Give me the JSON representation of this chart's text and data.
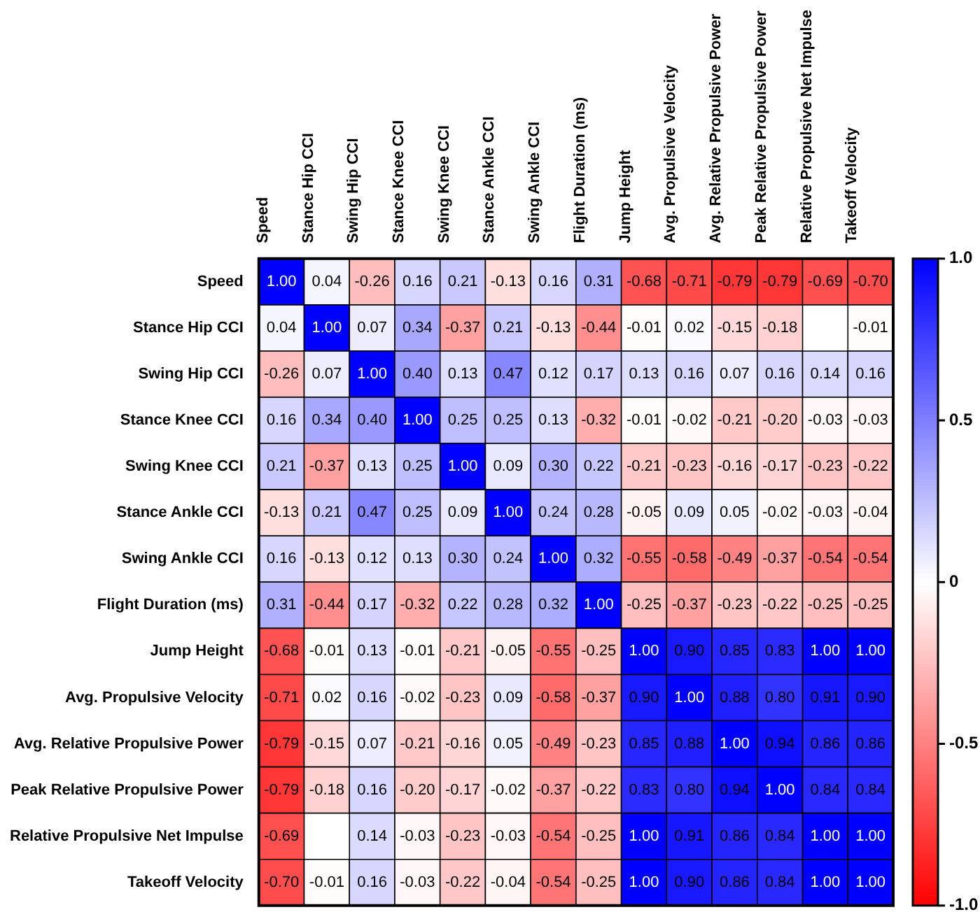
{
  "chart_data": {
    "type": "heatmap",
    "categories": [
      "Speed",
      "Stance Hip CCI",
      "Swing Hip CCI",
      "Stance Knee CCI",
      "Swing Knee CCI",
      "Stance Ankle CCI",
      "Swing Ankle CCI",
      "Flight Duration (ms)",
      "Jump Height",
      "Avg. Propulsive Velocity",
      "Avg. Relative Propulsive Power",
      "Peak Relative Propulsive Power",
      "Relative Propulsive Net Impulse",
      "Takeoff Velocity"
    ],
    "y_categories": [
      "Speed",
      "Stance Hip CCI",
      "Swing Hip CCI",
      "Stance Knee CCI",
      "Swing Knee CCI",
      "Stance Ankle CCI",
      "Swing Ankle CCI",
      "Flight Duration (ms)",
      "Jump Height",
      "Avg. Propulsive Velocity",
      "Avg. Relative Propulsive Power",
      "Peak Relative Propulsive Power",
      "Relative Propulsive Net Impulse",
      "Takeoff Velocity"
    ],
    "cells": [
      [
        1.0,
        0.04,
        -0.26,
        0.16,
        0.21,
        -0.13,
        0.16,
        0.31,
        -0.68,
        -0.71,
        -0.79,
        -0.79,
        -0.69,
        -0.7
      ],
      [
        0.04,
        1.0,
        0.07,
        0.34,
        -0.37,
        0.21,
        -0.13,
        -0.44,
        -0.01,
        0.02,
        -0.15,
        -0.18,
        null,
        -0.01
      ],
      [
        -0.26,
        0.07,
        1.0,
        0.4,
        0.13,
        0.47,
        0.12,
        0.17,
        0.13,
        0.16,
        0.07,
        0.16,
        0.14,
        0.16
      ],
      [
        0.16,
        0.34,
        0.4,
        1.0,
        0.25,
        0.25,
        0.13,
        -0.32,
        -0.01,
        -0.02,
        -0.21,
        -0.2,
        -0.03,
        -0.03
      ],
      [
        0.21,
        -0.37,
        0.13,
        0.25,
        1.0,
        0.09,
        0.3,
        0.22,
        -0.21,
        -0.23,
        -0.16,
        -0.17,
        -0.23,
        -0.22
      ],
      [
        -0.13,
        0.21,
        0.47,
        0.25,
        0.09,
        1.0,
        0.24,
        0.28,
        -0.05,
        0.09,
        0.05,
        -0.02,
        -0.03,
        -0.04
      ],
      [
        0.16,
        -0.13,
        0.12,
        0.13,
        0.3,
        0.24,
        1.0,
        0.32,
        -0.55,
        -0.58,
        -0.49,
        -0.37,
        -0.54,
        -0.54
      ],
      [
        0.31,
        -0.44,
        0.17,
        -0.32,
        0.22,
        0.28,
        0.32,
        1.0,
        -0.25,
        -0.37,
        -0.23,
        -0.22,
        -0.25,
        -0.25
      ],
      [
        -0.68,
        -0.01,
        0.13,
        -0.01,
        -0.21,
        -0.05,
        -0.55,
        -0.25,
        1.0,
        0.9,
        0.85,
        0.83,
        1.0,
        1.0
      ],
      [
        -0.71,
        0.02,
        0.16,
        -0.02,
        -0.23,
        0.09,
        -0.58,
        -0.37,
        0.9,
        1.0,
        0.88,
        0.8,
        0.91,
        0.9
      ],
      [
        -0.79,
        -0.15,
        0.07,
        -0.21,
        -0.16,
        0.05,
        -0.49,
        -0.23,
        0.85,
        0.88,
        1.0,
        0.94,
        0.86,
        0.86
      ],
      [
        -0.79,
        -0.18,
        0.16,
        -0.2,
        -0.17,
        -0.02,
        -0.37,
        -0.22,
        0.83,
        0.8,
        0.94,
        1.0,
        0.84,
        0.84
      ],
      [
        -0.69,
        null,
        0.14,
        -0.03,
        -0.23,
        -0.03,
        -0.54,
        -0.25,
        1.0,
        0.91,
        0.86,
        0.84,
        1.0,
        1.0
      ],
      [
        -0.7,
        -0.01,
        0.16,
        -0.03,
        -0.22,
        -0.04,
        -0.54,
        -0.25,
        1.0,
        0.9,
        0.86,
        0.84,
        1.0,
        1.0
      ]
    ],
    "cell_labels": [
      [
        "1.00",
        "0.04",
        "-0.26",
        "0.16",
        "0.21",
        "-0.13",
        "0.16",
        "0.31",
        "-0.68",
        "-0.71",
        "-0.79",
        "-0.79",
        "-0.69",
        "-0.70"
      ],
      [
        "0.04",
        "1.00",
        "0.07",
        "0.34",
        "-0.37",
        "0.21",
        "-0.13",
        "-0.44",
        "-0.01",
        "0.02",
        "-0.15",
        "-0.18",
        null,
        "-0.01"
      ],
      [
        "-0.26",
        "0.07",
        "1.00",
        "0.40",
        "0.13",
        "0.47",
        "0.12",
        "0.17",
        "0.13",
        "0.16",
        "0.07",
        "0.16",
        "0.14",
        "0.16"
      ],
      [
        "0.16",
        "0.34",
        "0.40",
        "1.00",
        "0.25",
        "0.25",
        "0.13",
        "-0.32",
        "-0.01",
        "-0.02",
        "-0.21",
        "-0.20",
        "-0.03",
        "-0.03"
      ],
      [
        "0.21",
        "-0.37",
        "0.13",
        "0.25",
        "1.00",
        "0.09",
        "0.30",
        "0.22",
        "-0.21",
        "-0.23",
        "-0.16",
        "-0.17",
        "-0.23",
        "-0.22"
      ],
      [
        "-0.13",
        "0.21",
        "0.47",
        "0.25",
        "0.09",
        "1.00",
        "0.24",
        "0.28",
        "-0.05",
        "0.09",
        "0.05",
        "-0.02",
        "-0.03",
        "-0.04"
      ],
      [
        "0.16",
        "-0.13",
        "0.12",
        "0.13",
        "0.30",
        "0.24",
        "1.00",
        "0.32",
        "-0.55",
        "-0.58",
        "-0.49",
        "-0.37",
        "-0.54",
        "-0.54"
      ],
      [
        "0.31",
        "-0.44",
        "0.17",
        "-0.32",
        "0.22",
        "0.28",
        "0.32",
        "1.00",
        "-0.25",
        "-0.37",
        "-0.23",
        "-0.22",
        "-0.25",
        "-0.25"
      ],
      [
        "-0.68",
        "-0.01",
        "0.13",
        "-0.01",
        "-0.21",
        "-0.05",
        "-0.55",
        "-0.25",
        "1.00",
        "0.90",
        "0.85",
        "0.83",
        "1.00",
        "1.00"
      ],
      [
        "-0.71",
        "0.02",
        "0.16",
        "-0.02",
        "-0.23",
        "0.09",
        "-0.58",
        "-0.37",
        "0.90",
        "1.00",
        "0.88",
        "0.80",
        "0.91",
        "0.90"
      ],
      [
        "-0.79",
        "-0.15",
        "0.07",
        "-0.21",
        "-0.16",
        "0.05",
        "-0.49",
        "-0.23",
        "0.85",
        "0.88",
        "1.00",
        "0.94",
        "0.86",
        "0.86"
      ],
      [
        "-0.79",
        "-0.18",
        "0.16",
        "-0.20",
        "-0.17",
        "-0.02",
        "-0.37",
        "-0.22",
        "0.83",
        "0.80",
        "0.94",
        "1.00",
        "0.84",
        "0.84"
      ],
      [
        "-0.69",
        null,
        "0.14",
        "-0.03",
        "-0.23",
        "-0.03",
        "-0.54",
        "-0.25",
        "1.00",
        "0.91",
        "0.86",
        "0.84",
        "1.00",
        "1.00"
      ],
      [
        "-0.70",
        "-0.01",
        "0.16",
        "-0.03",
        "-0.22",
        "-0.04",
        "-0.54",
        "-0.25",
        "1.00",
        "0.90",
        "0.86",
        "0.84",
        "1.00",
        "1.00"
      ]
    ],
    "clim": [
      -1,
      1
    ],
    "cticks": [
      {
        "value": 1,
        "label": "1.0"
      },
      0.5,
      0,
      -0.5,
      {
        "value": -1,
        "label": "-1.0"
      }
    ]
  }
}
